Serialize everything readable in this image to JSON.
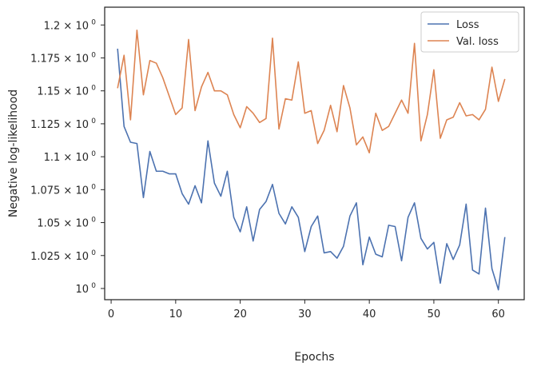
{
  "chart_data": {
    "type": "line",
    "xlabel": "Epochs",
    "ylabel": "Negative log-likelihood",
    "xlim": [
      -1,
      64
    ],
    "ylim": [
      0.9915,
      1.2135
    ],
    "x_ticks": [
      0,
      10,
      20,
      30,
      40,
      50,
      60
    ],
    "y_ticks": [
      {
        "value": 1.0,
        "mantissa": "10"
      },
      {
        "value": 1.025,
        "mantissa": "1.025 × 10"
      },
      {
        "value": 1.05,
        "mantissa": "1.05 × 10"
      },
      {
        "value": 1.075,
        "mantissa": "1.075 × 10"
      },
      {
        "value": 1.1,
        "mantissa": "1.1 × 10"
      },
      {
        "value": 1.125,
        "mantissa": "1.125 × 10"
      },
      {
        "value": 1.15,
        "mantissa": "1.15 × 10"
      },
      {
        "value": 1.175,
        "mantissa": "1.175 × 10"
      },
      {
        "value": 1.2,
        "mantissa": "1.2 × 10"
      }
    ],
    "y_exponent": "0",
    "legend_position": "top-right",
    "x": [
      1,
      2,
      3,
      4,
      5,
      6,
      7,
      8,
      9,
      10,
      11,
      12,
      13,
      14,
      15,
      16,
      17,
      18,
      19,
      20,
      21,
      22,
      23,
      24,
      25,
      26,
      27,
      28,
      29,
      30,
      31,
      32,
      33,
      34,
      35,
      36,
      37,
      38,
      39,
      40,
      41,
      42,
      43,
      44,
      45,
      46,
      47,
      48,
      49,
      50,
      51,
      52,
      53,
      54,
      55,
      56,
      57,
      58,
      59,
      60,
      61
    ],
    "series": [
      {
        "name": "Loss",
        "color": "#4c72b0",
        "values": [
          1.182,
          1.123,
          1.111,
          1.11,
          1.069,
          1.104,
          1.089,
          1.089,
          1.087,
          1.087,
          1.072,
          1.064,
          1.078,
          1.065,
          1.112,
          1.08,
          1.07,
          1.089,
          1.054,
          1.043,
          1.062,
          1.036,
          1.06,
          1.066,
          1.079,
          1.057,
          1.049,
          1.062,
          1.054,
          1.028,
          1.047,
          1.055,
          1.027,
          1.028,
          1.023,
          1.032,
          1.055,
          1.065,
          1.018,
          1.039,
          1.026,
          1.024,
          1.048,
          1.047,
          1.021,
          1.054,
          1.065,
          1.038,
          1.03,
          1.035,
          1.004,
          1.034,
          1.022,
          1.033,
          1.064,
          1.014,
          1.011,
          1.061,
          1.015,
          0.999,
          1.039
        ]
      },
      {
        "name": "Val. loss",
        "color": "#dd8452",
        "values": [
          1.152,
          1.177,
          1.128,
          1.196,
          1.147,
          1.173,
          1.171,
          1.16,
          1.146,
          1.132,
          1.137,
          1.189,
          1.135,
          1.153,
          1.164,
          1.15,
          1.15,
          1.147,
          1.132,
          1.122,
          1.138,
          1.133,
          1.126,
          1.129,
          1.19,
          1.121,
          1.144,
          1.143,
          1.172,
          1.133,
          1.135,
          1.11,
          1.12,
          1.139,
          1.119,
          1.154,
          1.137,
          1.109,
          1.115,
          1.103,
          1.133,
          1.12,
          1.123,
          1.133,
          1.143,
          1.133,
          1.186,
          1.112,
          1.132,
          1.166,
          1.114,
          1.128,
          1.13,
          1.141,
          1.131,
          1.132,
          1.128,
          1.136,
          1.168,
          1.142,
          1.159
        ]
      }
    ]
  }
}
